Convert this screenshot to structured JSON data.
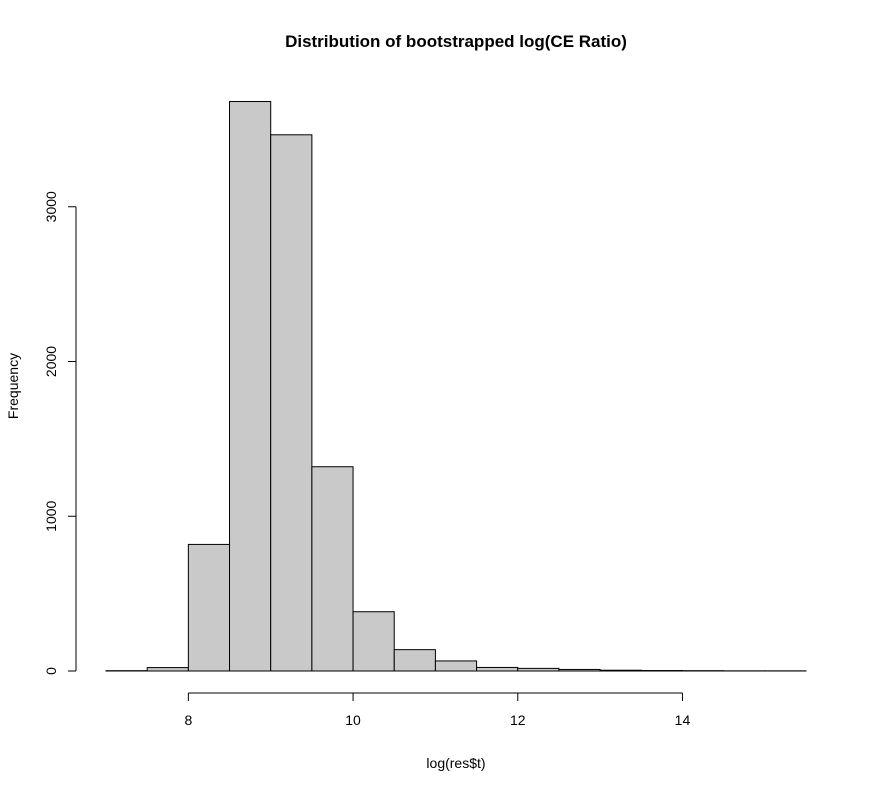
{
  "chart_data": {
    "type": "histogram",
    "title": "Distribution of bootstrapped log(CE Ratio)",
    "xlabel": "log(res$t)",
    "ylabel": "Frequency",
    "bin_width": 0.5,
    "bins": [
      {
        "x0": 7.0,
        "x1": 7.5,
        "count": 2
      },
      {
        "x0": 7.5,
        "x1": 8.0,
        "count": 22
      },
      {
        "x0": 8.0,
        "x1": 8.5,
        "count": 818
      },
      {
        "x0": 8.5,
        "x1": 9.0,
        "count": 3680
      },
      {
        "x0": 9.0,
        "x1": 9.5,
        "count": 3465
      },
      {
        "x0": 9.5,
        "x1": 10.0,
        "count": 1320
      },
      {
        "x0": 10.0,
        "x1": 10.5,
        "count": 383
      },
      {
        "x0": 10.5,
        "x1": 11.0,
        "count": 138
      },
      {
        "x0": 11.0,
        "x1": 11.5,
        "count": 65
      },
      {
        "x0": 11.5,
        "x1": 12.0,
        "count": 23
      },
      {
        "x0": 12.0,
        "x1": 12.5,
        "count": 17
      },
      {
        "x0": 12.5,
        "x1": 13.0,
        "count": 10
      },
      {
        "x0": 13.0,
        "x1": 13.5,
        "count": 5
      },
      {
        "x0": 13.5,
        "x1": 14.0,
        "count": 3
      },
      {
        "x0": 14.0,
        "x1": 14.5,
        "count": 2
      },
      {
        "x0": 14.5,
        "x1": 15.0,
        "count": 1
      },
      {
        "x0": 15.0,
        "x1": 15.5,
        "count": 1
      }
    ],
    "x_ticks": [
      8,
      10,
      12,
      14
    ],
    "y_ticks": [
      0,
      1000,
      2000,
      3000
    ],
    "xlim": [
      7.0,
      15.5
    ],
    "ylim": [
      0,
      3700
    ],
    "bar_color": "#c9c9c9",
    "edge_color": "#000000",
    "grid": false,
    "legend": "none"
  }
}
